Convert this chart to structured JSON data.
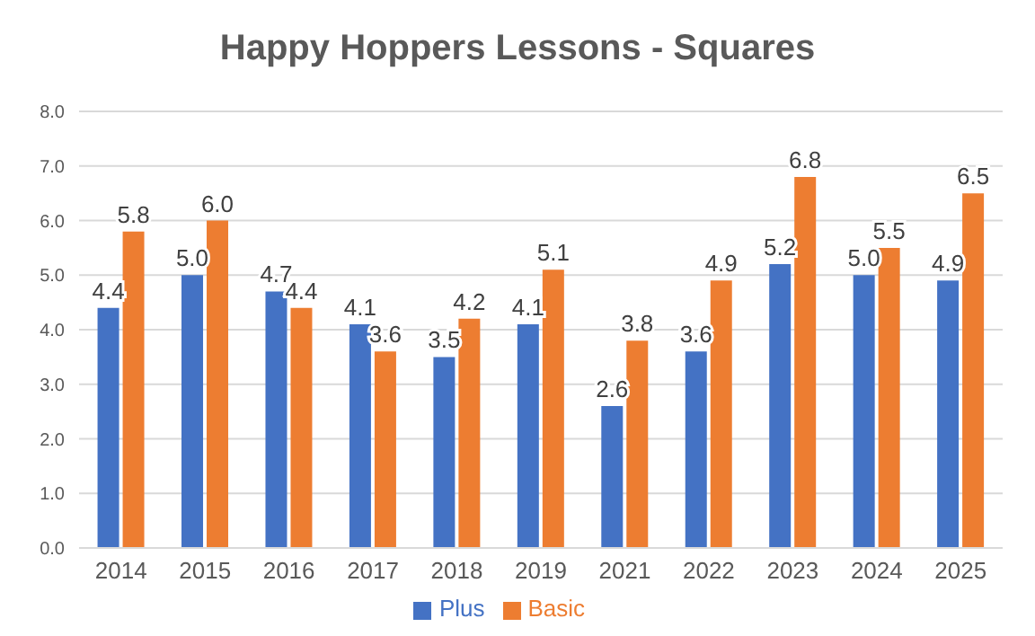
{
  "chart_data": {
    "type": "bar",
    "title": "Happy Hoppers Lessons - Squares",
    "categories": [
      "2014",
      "2015",
      "2016",
      "2017",
      "2018",
      "2019",
      "2021",
      "2022",
      "2023",
      "2024",
      "2025"
    ],
    "series": [
      {
        "name": "Plus",
        "color": "#4472c4",
        "values": [
          4.4,
          5.0,
          4.7,
          4.1,
          3.5,
          4.1,
          2.6,
          3.6,
          5.2,
          5.0,
          4.9
        ],
        "value_labels": [
          "4.4",
          "5.0",
          "4.7",
          "4.1",
          "3.5",
          "4.1",
          "2.6",
          "3.6",
          "5.2",
          "5.0",
          "4.9"
        ]
      },
      {
        "name": "Basic",
        "color": "#ed7d31",
        "values": [
          5.8,
          6.0,
          4.4,
          3.6,
          4.2,
          5.1,
          3.8,
          4.9,
          6.8,
          5.5,
          6.5
        ],
        "value_labels": [
          "5.8",
          "6.0",
          "4.4",
          "3.6",
          "4.2",
          "5.1",
          "3.8",
          "4.9",
          "6.8",
          "5.5",
          "6.5"
        ]
      }
    ],
    "ylim": [
      0,
      8
    ],
    "yticks": [
      {
        "value": 0,
        "label": "0.0"
      },
      {
        "value": 1,
        "label": "1.0"
      },
      {
        "value": 2,
        "label": "2.0"
      },
      {
        "value": 3,
        "label": "3.0"
      },
      {
        "value": 4,
        "label": "4.0"
      },
      {
        "value": 5,
        "label": "5.0"
      },
      {
        "value": 6,
        "label": "6.0"
      },
      {
        "value": 7,
        "label": "7.0"
      },
      {
        "value": 8,
        "label": "8.0"
      }
    ],
    "grid": "y",
    "legend": "bottom"
  }
}
